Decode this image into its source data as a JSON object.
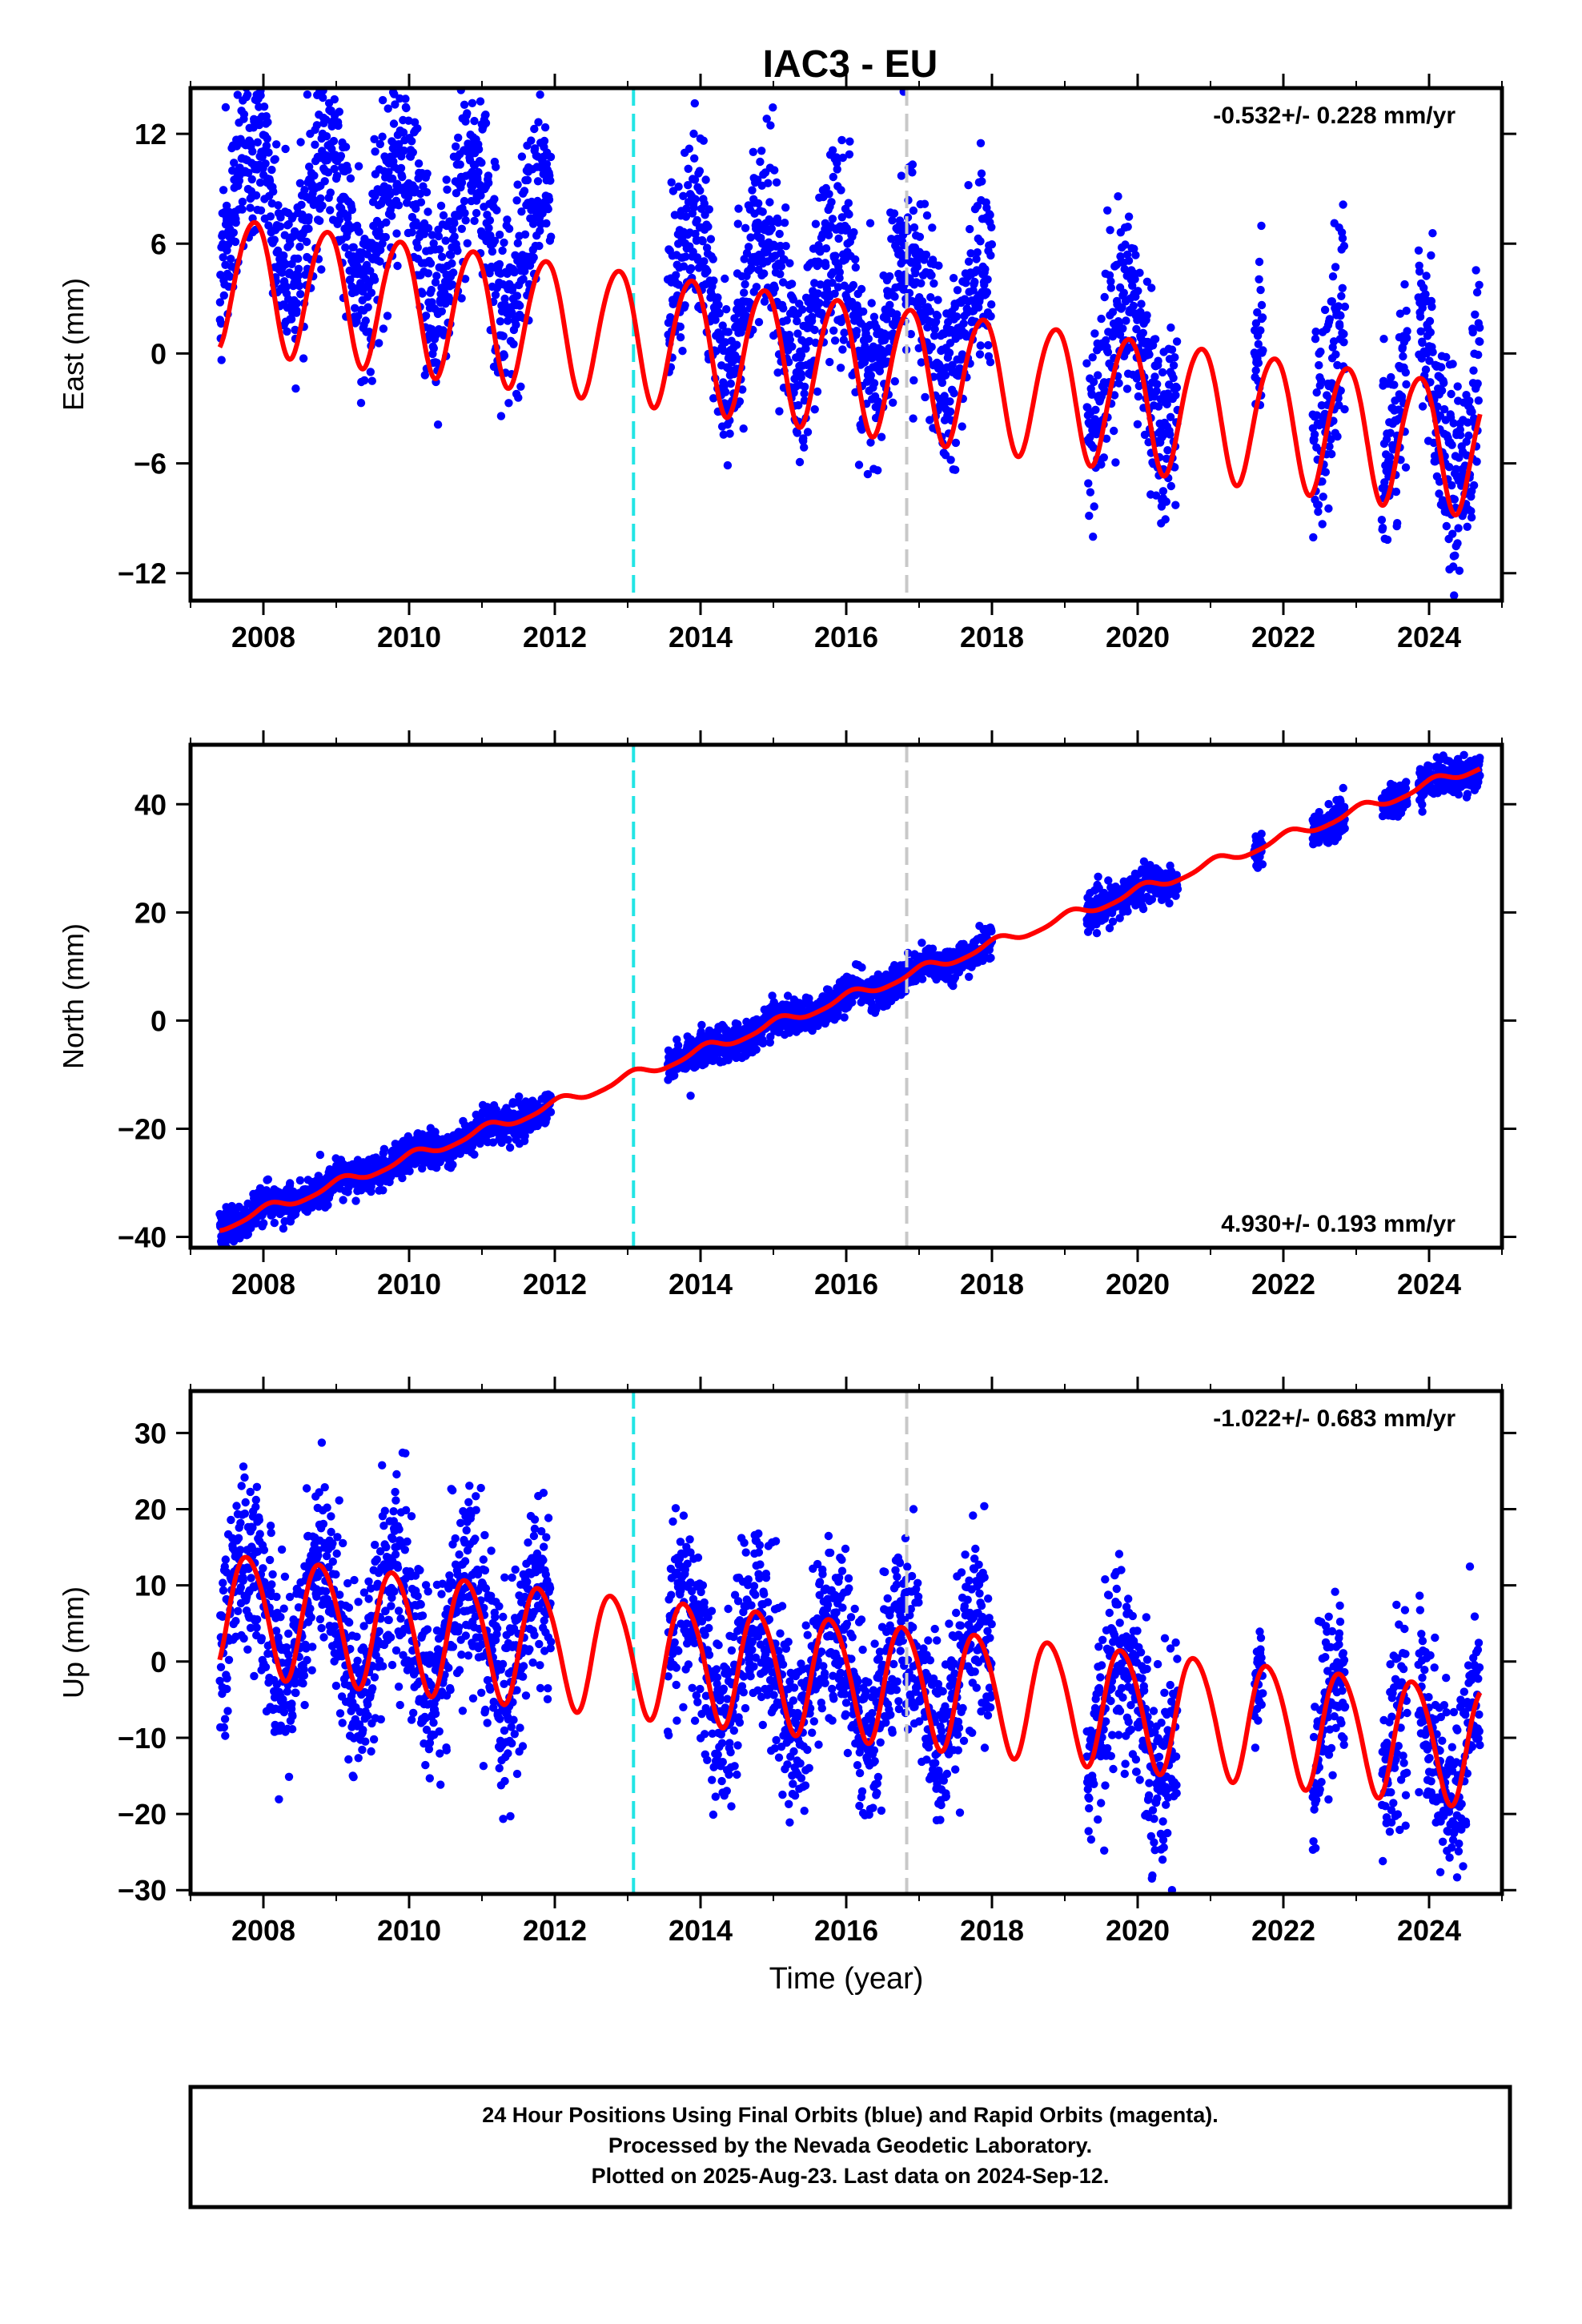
{
  "title": "IAC3 - EU",
  "colors": {
    "points": "#0000ff",
    "fit": "#ff0000",
    "event_cyan": "#22e5e5",
    "event_gray": "#c8c8c8",
    "frame": "#000000"
  },
  "chart_data": [
    {
      "type": "scatter",
      "name": "east",
      "ylabel": "East (mm)",
      "xlim": [
        2007.0,
        2025.0
      ],
      "ylim": [
        -13.5,
        14.5
      ],
      "xticks": [
        2008,
        2010,
        2012,
        2014,
        2016,
        2018,
        2020,
        2022,
        2024
      ],
      "yticks": [
        -12,
        -6,
        0,
        6,
        12
      ],
      "rate_text": "-0.532+/- 0.228 mm/yr",
      "rate_position": "top-right",
      "event_lines": [
        2013.08,
        2016.83
      ],
      "segments": [
        {
          "start": 2007.4,
          "end": 2011.95,
          "offset": 4.3
        },
        {
          "start": 2013.55,
          "end": 2018.0,
          "offset": 3.0
        },
        {
          "start": 2019.3,
          "end": 2020.55,
          "offset": 2.4
        },
        {
          "start": 2021.6,
          "end": 2021.72,
          "offset": 2.6
        },
        {
          "start": 2022.4,
          "end": 2022.85,
          "offset": 2.3
        },
        {
          "start": 2023.35,
          "end": 2023.7,
          "offset": 2.1
        },
        {
          "start": 2023.85,
          "end": 2024.7,
          "offset": 2.1
        }
      ],
      "fit": {
        "ref_year": 2016.0,
        "intercept": -0.5,
        "slope": -0.532,
        "annual_amp": 3.6,
        "annual_phase": 2.4,
        "semiannual_amp": 0.3,
        "semiannual_phase": 0.5
      },
      "scatter_sigma": 2.6
    },
    {
      "type": "scatter",
      "name": "north",
      "ylabel": "North (mm)",
      "xlim": [
        2007.0,
        2025.0
      ],
      "ylim": [
        -42.0,
        51.0
      ],
      "xticks": [
        2008,
        2010,
        2012,
        2014,
        2016,
        2018,
        2020,
        2022,
        2024
      ],
      "yticks": [
        -40,
        -20,
        0,
        20,
        40
      ],
      "rate_text": "4.930+/- 0.193 mm/yr",
      "rate_position": "bottom-right",
      "event_lines": [
        2013.08,
        2016.83
      ],
      "segments": [
        {
          "start": 2007.4,
          "end": 2010.95,
          "offset": 0.0
        },
        {
          "start": 2010.95,
          "end": 2011.95,
          "offset": 0.0
        },
        {
          "start": 2013.55,
          "end": 2018.0,
          "offset": 0.0
        },
        {
          "start": 2019.3,
          "end": 2020.55,
          "offset": 0.0
        },
        {
          "start": 2021.6,
          "end": 2021.72,
          "offset": 0.0
        },
        {
          "start": 2022.4,
          "end": 2022.85,
          "offset": 0.0
        },
        {
          "start": 2023.35,
          "end": 2023.7,
          "offset": 0.0
        },
        {
          "start": 2023.85,
          "end": 2024.7,
          "offset": 0.0
        }
      ],
      "fit": {
        "ref_year": 2016.0,
        "intercept": 4.2,
        "slope": 4.93,
        "annual_amp": 0.9,
        "annual_phase": 1.2,
        "semiannual_amp": 0.2,
        "semiannual_phase": 0.3
      },
      "scatter_sigma": 1.6
    },
    {
      "type": "scatter",
      "name": "up",
      "ylabel": "Up (mm)",
      "xlabel": "Time (year)",
      "xlim": [
        2007.0,
        2025.0
      ],
      "ylim": [
        -30.5,
        35.5
      ],
      "xticks": [
        2008,
        2010,
        2012,
        2014,
        2016,
        2018,
        2020,
        2022,
        2024
      ],
      "yticks": [
        -30,
        -20,
        -10,
        0,
        10,
        20,
        30
      ],
      "rate_text": "-1.022+/- 0.683 mm/yr",
      "rate_position": "top-right",
      "event_lines": [
        2013.08,
        2016.83
      ],
      "segments": [
        {
          "start": 2007.4,
          "end": 2011.95,
          "offset": 0.0
        },
        {
          "start": 2013.55,
          "end": 2018.0,
          "offset": 0.0
        },
        {
          "start": 2019.3,
          "end": 2020.55,
          "offset": 0.0
        },
        {
          "start": 2021.6,
          "end": 2021.72,
          "offset": 0.0
        },
        {
          "start": 2022.4,
          "end": 2022.85,
          "offset": 0.0
        },
        {
          "start": 2023.35,
          "end": 2023.7,
          "offset": 0.0
        },
        {
          "start": 2023.85,
          "end": 2024.7,
          "offset": 0.0
        }
      ],
      "fit": {
        "ref_year": 2016.0,
        "intercept": -2.0,
        "slope": -1.022,
        "annual_amp": 7.8,
        "annual_phase": 2.9,
        "semiannual_amp": 0.8,
        "semiannual_phase": 0.4
      },
      "scatter_sigma": 6.0
    }
  ],
  "footer": {
    "line1": "24 Hour Positions Using Final Orbits (blue) and Rapid Orbits (magenta).",
    "line2": "Processed by the Nevada Geodetic Laboratory.",
    "line3": "Plotted on 2025-Aug-23. Last data on 2024-Sep-12."
  }
}
